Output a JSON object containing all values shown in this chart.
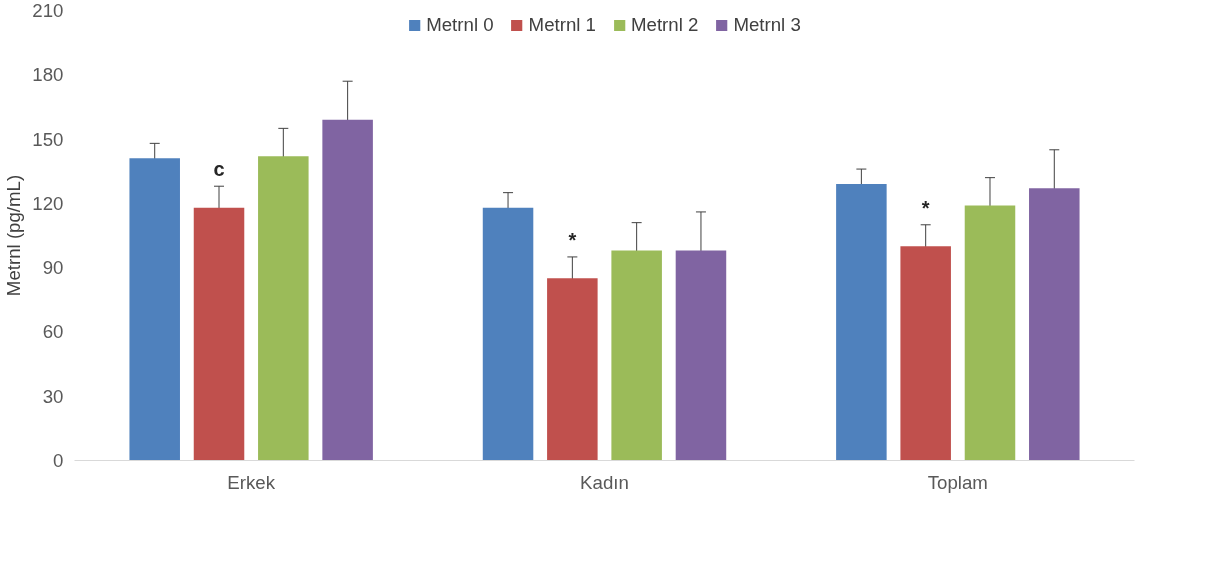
{
  "chart_data": {
    "type": "bar",
    "ylabel": "Metrnl (pg/mL)",
    "categories": [
      "Erkek",
      "Kadın",
      "Toplam"
    ],
    "series": [
      {
        "name": "Metrnl 0",
        "color": "#4f81bd",
        "values": [
          141,
          118,
          129
        ],
        "errors": [
          7,
          7,
          7
        ]
      },
      {
        "name": "Metrnl 1",
        "color": "#c0504d",
        "values": [
          118,
          85,
          100
        ],
        "errors": [
          10,
          10,
          10
        ]
      },
      {
        "name": "Metrnl 2",
        "color": "#9bbb59",
        "values": [
          142,
          98,
          119
        ],
        "errors": [
          13,
          13,
          13
        ]
      },
      {
        "name": "Metrnl 3",
        "color": "#8064a2",
        "values": [
          159,
          98,
          127
        ],
        "errors": [
          18,
          18,
          18
        ]
      }
    ],
    "ylim": [
      0,
      210
    ],
    "yticks": [
      0,
      30,
      60,
      90,
      120,
      150,
      180,
      210
    ],
    "grid": false,
    "legend": "top",
    "annotations": [
      "c",
      "*",
      "*"
    ]
  }
}
